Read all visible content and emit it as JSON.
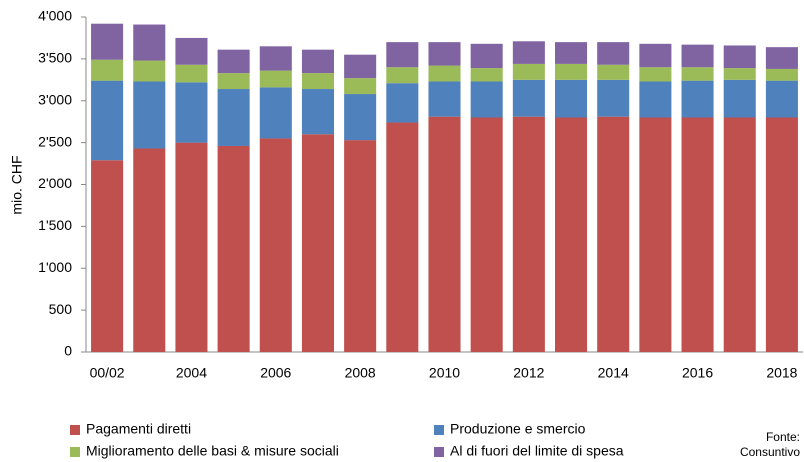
{
  "chart_data": {
    "type": "stacked_bar",
    "y_label": "mio. CHF",
    "source": [
      "Fonte:",
      "Consuntivo"
    ],
    "categories": [
      "00/02",
      null,
      "2004",
      null,
      "2006",
      null,
      "2008",
      null,
      "2010",
      null,
      "2012",
      null,
      "2014",
      null,
      "2016",
      null,
      "2018"
    ],
    "series": [
      {
        "name": "Pagamenti diretti",
        "color": "#c0504d",
        "values": [
          2290,
          2430,
          2500,
          2460,
          2550,
          2600,
          2530,
          2740,
          2810,
          2800,
          2810,
          2800,
          2810,
          2800,
          2800,
          2800,
          2800
        ]
      },
      {
        "name": "Produzione e smercio",
        "color": "#4f81bd",
        "values": [
          950,
          800,
          720,
          680,
          610,
          540,
          550,
          470,
          420,
          430,
          440,
          450,
          440,
          430,
          440,
          450,
          440
        ]
      },
      {
        "name": "Miglioramento delle basi & misure sociali",
        "color": "#9bbb59",
        "values": [
          250,
          250,
          210,
          190,
          200,
          190,
          190,
          190,
          190,
          160,
          190,
          190,
          180,
          170,
          160,
          140,
          140
        ]
      },
      {
        "name": "Al di fuori del limite di spesa",
        "color": "#8064a2",
        "values": [
          430,
          430,
          320,
          280,
          290,
          280,
          280,
          300,
          280,
          290,
          270,
          260,
          270,
          280,
          270,
          270,
          260
        ]
      }
    ],
    "ylim": [
      0,
      4000
    ],
    "yticks": [
      0,
      500,
      {
        "value": 1000,
        "label": "1'000"
      },
      {
        "value": 1500,
        "label": "1'500"
      },
      {
        "value": 2000,
        "label": "2'000"
      },
      {
        "value": 2500,
        "label": "2'500"
      },
      {
        "value": 3000,
        "label": "3'000"
      },
      {
        "value": 3500,
        "label": "3'500"
      },
      {
        "value": 4000,
        "label": "4'000"
      }
    ],
    "grid": false
  }
}
